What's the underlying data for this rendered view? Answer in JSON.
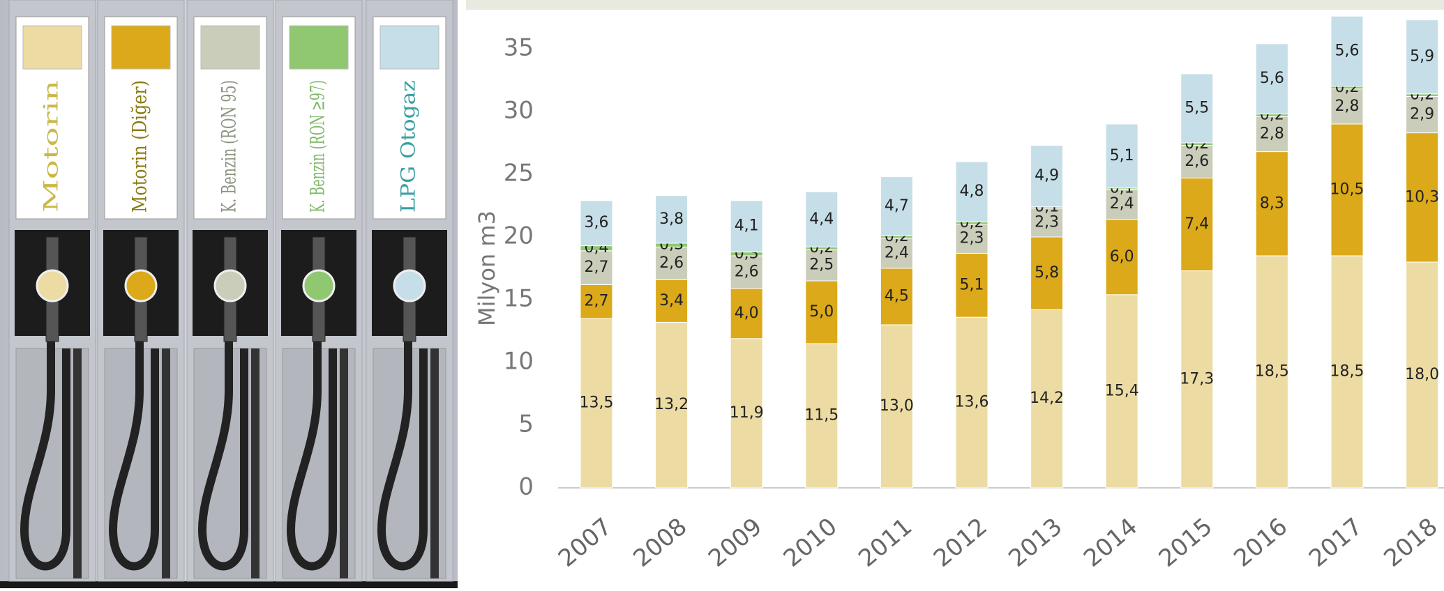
{
  "chart_data": {
    "type": "stacked-bar",
    "y_label": "Milyon m3",
    "categories": [
      "2007",
      "2008",
      "2009",
      "2010",
      "2011",
      "2012",
      "2013",
      "2014",
      "2015",
      "2016",
      "2017",
      "2018"
    ],
    "series": [
      {
        "name": "Motorin",
        "color": "#ecdca4",
        "values": [
          13.5,
          13.2,
          11.9,
          11.5,
          13.0,
          13.6,
          14.2,
          15.4,
          17.3,
          18.5,
          18.5,
          18.0
        ],
        "value_labels": [
          "13,5",
          "13,2",
          "11,9",
          "11,5",
          "13,0",
          "13,6",
          "14,2",
          "15,4",
          "17,3",
          "18,5",
          "18,5",
          "18,0"
        ]
      },
      {
        "name": "Motorin (Diğer)",
        "color": "#dba91a",
        "values": [
          2.7,
          3.4,
          4.0,
          5.0,
          4.5,
          5.1,
          5.8,
          6.0,
          7.4,
          8.3,
          10.5,
          10.3
        ],
        "value_labels": [
          "2,7",
          "3,4",
          "4,0",
          "5,0",
          "4,5",
          "5,1",
          "5,8",
          "6,0",
          "7,4",
          "8,3",
          "10,5",
          "10,3"
        ]
      },
      {
        "name": "K. Benzin (RON 95)",
        "color": "#c9cdb9",
        "values": [
          2.7,
          2.6,
          2.6,
          2.5,
          2.4,
          2.3,
          2.3,
          2.4,
          2.6,
          2.8,
          2.8,
          2.9
        ],
        "value_labels": [
          "2,7",
          "2,6",
          "2,6",
          "2,5",
          "2,4",
          "2,3",
          "2,3",
          "2,4",
          "2,6",
          "2,8",
          "2,8",
          "2,9"
        ]
      },
      {
        "name": "K. Benzin (RON ≥97)",
        "color": "#8fc870",
        "values": [
          0.4,
          0.3,
          0.3,
          0.2,
          0.2,
          0.2,
          0.1,
          0.1,
          0.2,
          0.2,
          0.2,
          0.2
        ],
        "value_labels": [
          "0,4",
          "0,3",
          "0,3",
          "0,2",
          "0,2",
          "0,2",
          "0,1",
          "0,1",
          "0,2",
          "0,2",
          "0,2",
          "0,2"
        ]
      },
      {
        "name": "LPG Otogaz",
        "color": "#c6dee7",
        "values": [
          3.6,
          3.8,
          4.1,
          4.4,
          4.7,
          4.8,
          4.9,
          5.1,
          5.5,
          5.6,
          5.6,
          5.9
        ],
        "value_labels": [
          "3,6",
          "3,8",
          "4,1",
          "4,4",
          "4,7",
          "4,8",
          "4,9",
          "5,1",
          "5,5",
          "5,6",
          "5,6",
          "5,9"
        ]
      }
    ],
    "legend_text_colors": [
      "#c9b84a",
      "#8a7a10",
      "#8a9480",
      "#7fb868",
      "#3aa0a0"
    ],
    "ylim": [
      0,
      38
    ],
    "yticks": [
      0,
      5,
      10,
      15,
      20,
      25,
      30,
      35
    ],
    "grid": false
  }
}
